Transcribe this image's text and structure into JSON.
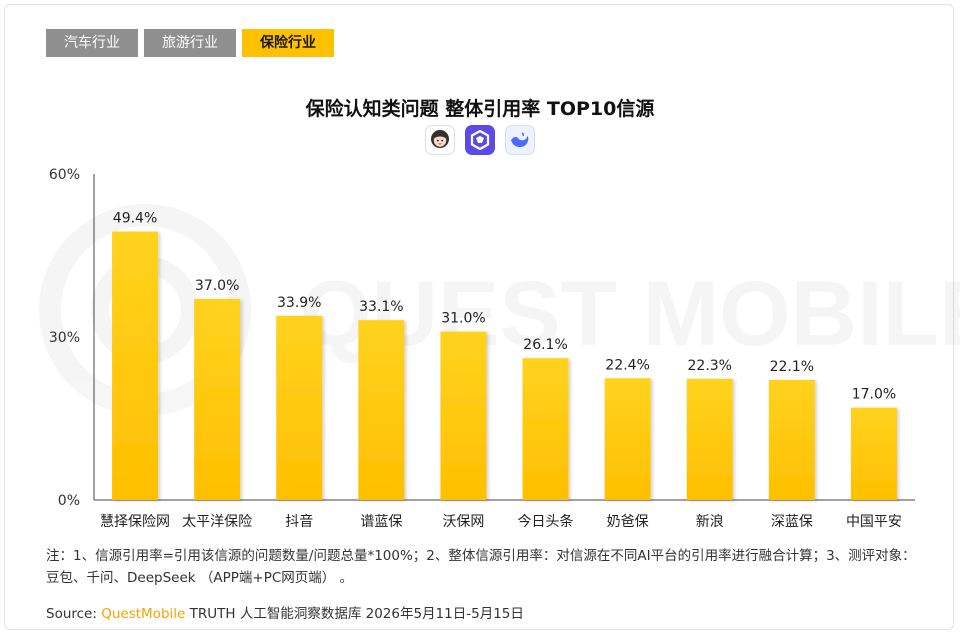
{
  "tabs": [
    {
      "label": "汽车行业",
      "active": false
    },
    {
      "label": "旅游行业",
      "active": false
    },
    {
      "label": "保险行业",
      "active": true
    }
  ],
  "title": "保险认知类问题 整体引用率 TOP10信源",
  "ai_icons": [
    "doubao-avatar-icon",
    "qwen-icon",
    "deepseek-icon"
  ],
  "watermark": "QUEST MOBILE",
  "chart_data": {
    "type": "bar",
    "categories": [
      "慧择保险网",
      "太平洋保险",
      "抖音",
      "谱蓝保",
      "沃保网",
      "今日头条",
      "奶爸保",
      "新浪",
      "深蓝保",
      "中国平安"
    ],
    "values": [
      49.4,
      37.0,
      33.9,
      33.1,
      31.0,
      26.1,
      22.4,
      22.3,
      22.1,
      17.0
    ],
    "value_labels": [
      "49.4%",
      "37.0%",
      "33.9%",
      "33.1%",
      "31.0%",
      "26.1%",
      "22.4%",
      "22.3%",
      "22.1%",
      "17.0%"
    ],
    "ylim": [
      0,
      60
    ],
    "yticks": [
      0,
      30,
      60
    ],
    "ytick_labels": [
      "0%",
      "30%",
      "60%"
    ],
    "bar_color": "#ffc000",
    "grid": false
  },
  "notes": "注：1、信源引用率=引用该信源的问题数量/问题总量*100%；2、整体信源引用率：对信源在不同AI平台的引用率进行融合计算；3、测评对象：豆包、千问、DeepSeek （APP端+PC网页端） 。",
  "source": {
    "prefix": "Source:",
    "brand": "QuestMobile",
    "text": "TRUTH 人工智能洞察数据库 2026年5月11日-5月15日"
  }
}
